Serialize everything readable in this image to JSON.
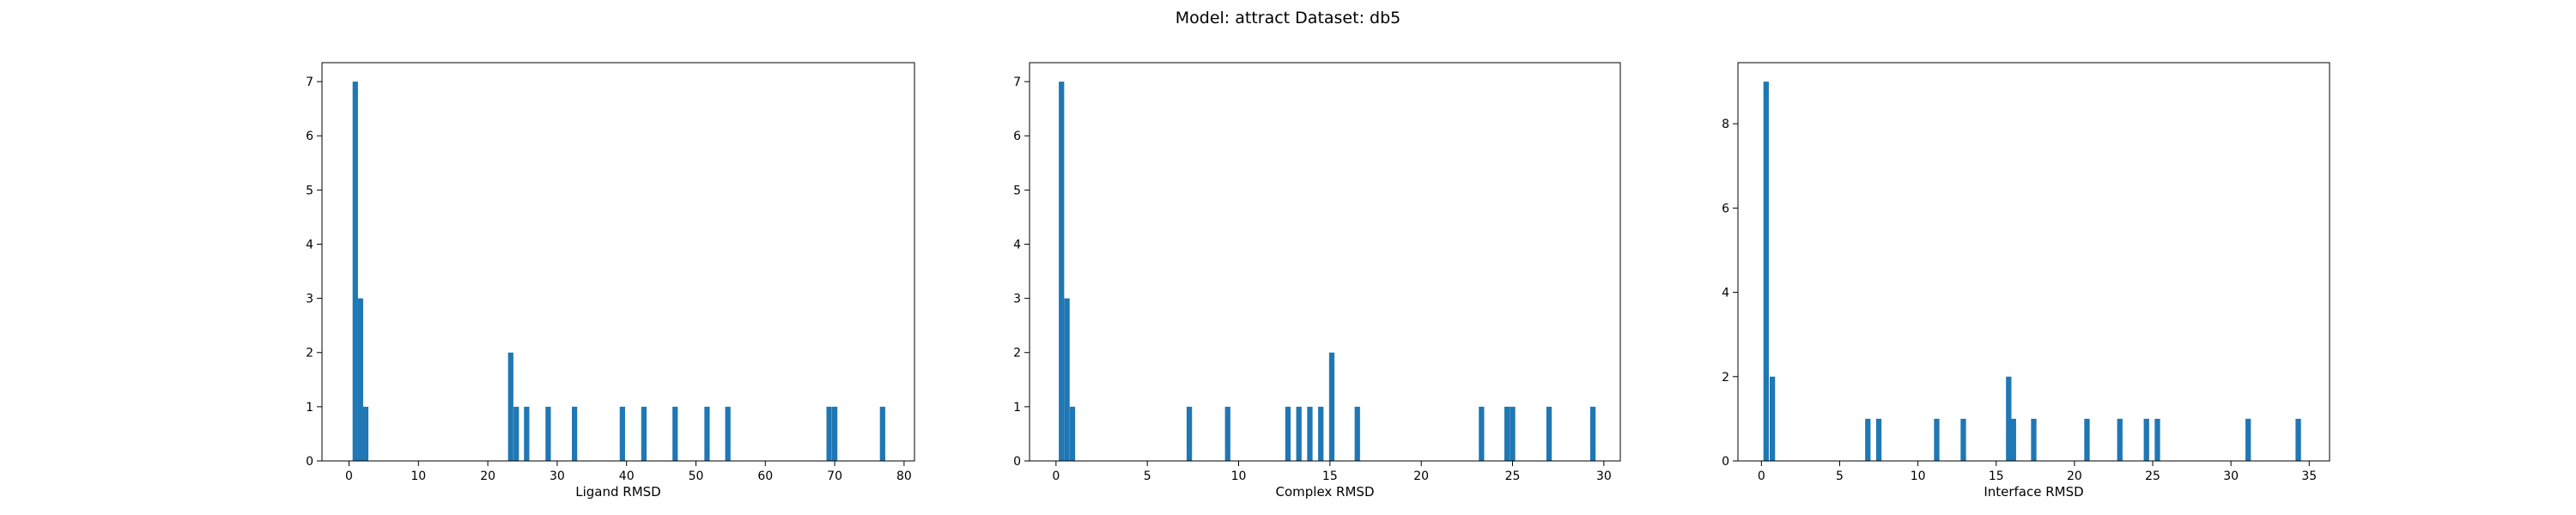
{
  "suptitle": "Model: attract Dataset: db5",
  "bar_color": "#1f77b4",
  "chart_data": [
    {
      "type": "bar",
      "title": "",
      "xlabel": "Ligand RMSD",
      "ylabel": "",
      "xlim": [
        -3.9,
        81.5
      ],
      "ylim": [
        0,
        7.35
      ],
      "xticks": [
        0,
        10,
        20,
        30,
        40,
        50,
        60,
        70,
        80
      ],
      "yticks": [
        0,
        1,
        2,
        3,
        4,
        5,
        6,
        7
      ],
      "bin_width": 0.77,
      "bars": [
        {
          "x": 0.9,
          "count": 7
        },
        {
          "x": 1.65,
          "count": 3
        },
        {
          "x": 2.4,
          "count": 1
        },
        {
          "x": 23.3,
          "count": 2
        },
        {
          "x": 24.1,
          "count": 1
        },
        {
          "x": 25.6,
          "count": 1
        },
        {
          "x": 28.7,
          "count": 1
        },
        {
          "x": 32.5,
          "count": 1
        },
        {
          "x": 39.4,
          "count": 1
        },
        {
          "x": 42.5,
          "count": 1
        },
        {
          "x": 47.0,
          "count": 1
        },
        {
          "x": 51.6,
          "count": 1
        },
        {
          "x": 54.6,
          "count": 1
        },
        {
          "x": 69.2,
          "count": 1
        },
        {
          "x": 70.0,
          "count": 1
        },
        {
          "x": 76.9,
          "count": 1
        }
      ]
    },
    {
      "type": "bar",
      "title": "",
      "xlabel": "Complex RMSD",
      "ylabel": "",
      "xlim": [
        -1.45,
        30.9
      ],
      "ylim": [
        0,
        7.35
      ],
      "xticks": [
        0,
        5,
        10,
        15,
        20,
        25,
        30
      ],
      "yticks": [
        0,
        1,
        2,
        3,
        4,
        5,
        6,
        7
      ],
      "bin_width": 0.295,
      "bars": [
        {
          "x": 0.3,
          "count": 7
        },
        {
          "x": 0.6,
          "count": 3
        },
        {
          "x": 0.9,
          "count": 1
        },
        {
          "x": 7.3,
          "count": 1
        },
        {
          "x": 9.4,
          "count": 1
        },
        {
          "x": 12.7,
          "count": 1
        },
        {
          "x": 13.3,
          "count": 1
        },
        {
          "x": 13.9,
          "count": 1
        },
        {
          "x": 14.5,
          "count": 1
        },
        {
          "x": 15.1,
          "count": 2
        },
        {
          "x": 16.5,
          "count": 1
        },
        {
          "x": 23.3,
          "count": 1
        },
        {
          "x": 24.7,
          "count": 1
        },
        {
          "x": 25.0,
          "count": 1
        },
        {
          "x": 27.0,
          "count": 1
        },
        {
          "x": 29.4,
          "count": 1
        }
      ]
    },
    {
      "type": "bar",
      "title": "",
      "xlabel": "Interface RMSD",
      "ylabel": "",
      "xlim": [
        -1.5,
        36.3
      ],
      "ylim": [
        0,
        9.45
      ],
      "xticks": [
        0,
        5,
        10,
        15,
        20,
        25,
        30,
        35
      ],
      "yticks": [
        0,
        2,
        4,
        6,
        8
      ],
      "bin_width": 0.345,
      "bars": [
        {
          "x": 0.3,
          "count": 9
        },
        {
          "x": 0.7,
          "count": 2
        },
        {
          "x": 6.8,
          "count": 1
        },
        {
          "x": 7.5,
          "count": 1
        },
        {
          "x": 11.2,
          "count": 1
        },
        {
          "x": 12.9,
          "count": 1
        },
        {
          "x": 15.8,
          "count": 2
        },
        {
          "x": 16.1,
          "count": 1
        },
        {
          "x": 17.4,
          "count": 1
        },
        {
          "x": 20.8,
          "count": 1
        },
        {
          "x": 22.9,
          "count": 1
        },
        {
          "x": 24.6,
          "count": 1
        },
        {
          "x": 25.3,
          "count": 1
        },
        {
          "x": 31.1,
          "count": 1
        },
        {
          "x": 34.3,
          "count": 1
        }
      ]
    }
  ]
}
